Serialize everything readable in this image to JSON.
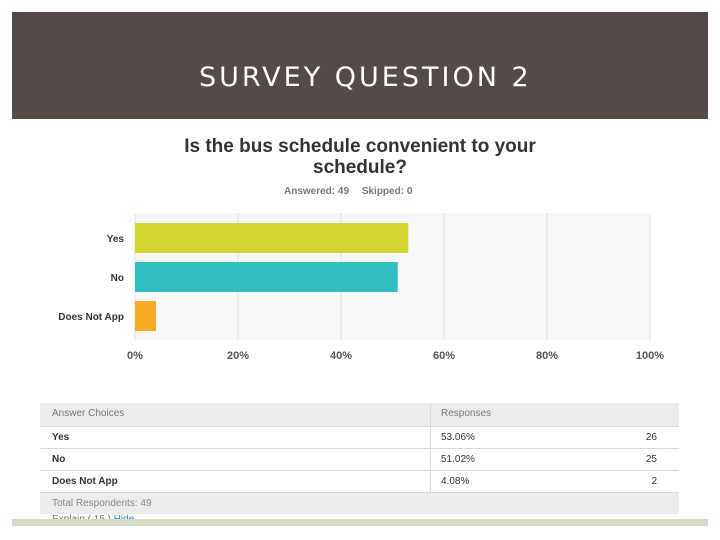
{
  "slide": {
    "title": "SURVEY QUESTION 2"
  },
  "question": {
    "title_line1": "Is the bus schedule convenient to your",
    "title_line2": "schedule?",
    "answered": "Answered: 49",
    "skipped": "Skipped: 0"
  },
  "chart_data": {
    "type": "bar",
    "orientation": "horizontal",
    "categories": [
      "Yes",
      "No",
      "Does Not App"
    ],
    "values": [
      53.06,
      51.02,
      4.08
    ],
    "unit": "%",
    "xlim": [
      0,
      100
    ],
    "xticks": [
      "0%",
      "20%",
      "40%",
      "60%",
      "80%",
      "100%"
    ],
    "colors": [
      "#d3d631",
      "#33bfc1",
      "#f5ab23"
    ],
    "grid": true
  },
  "table": {
    "headers": [
      "Answer Choices",
      "Responses"
    ],
    "rows": [
      {
        "choice": "Yes",
        "percent": "53.06%",
        "count": "26"
      },
      {
        "choice": "No",
        "percent": "51.02%",
        "count": "25"
      },
      {
        "choice": "Does Not App",
        "percent": "4.08%",
        "count": "2"
      }
    ],
    "total_label": "Total Respondents: 49"
  },
  "explain": {
    "text": "Explain ( 15 )",
    "link": "Hide"
  }
}
